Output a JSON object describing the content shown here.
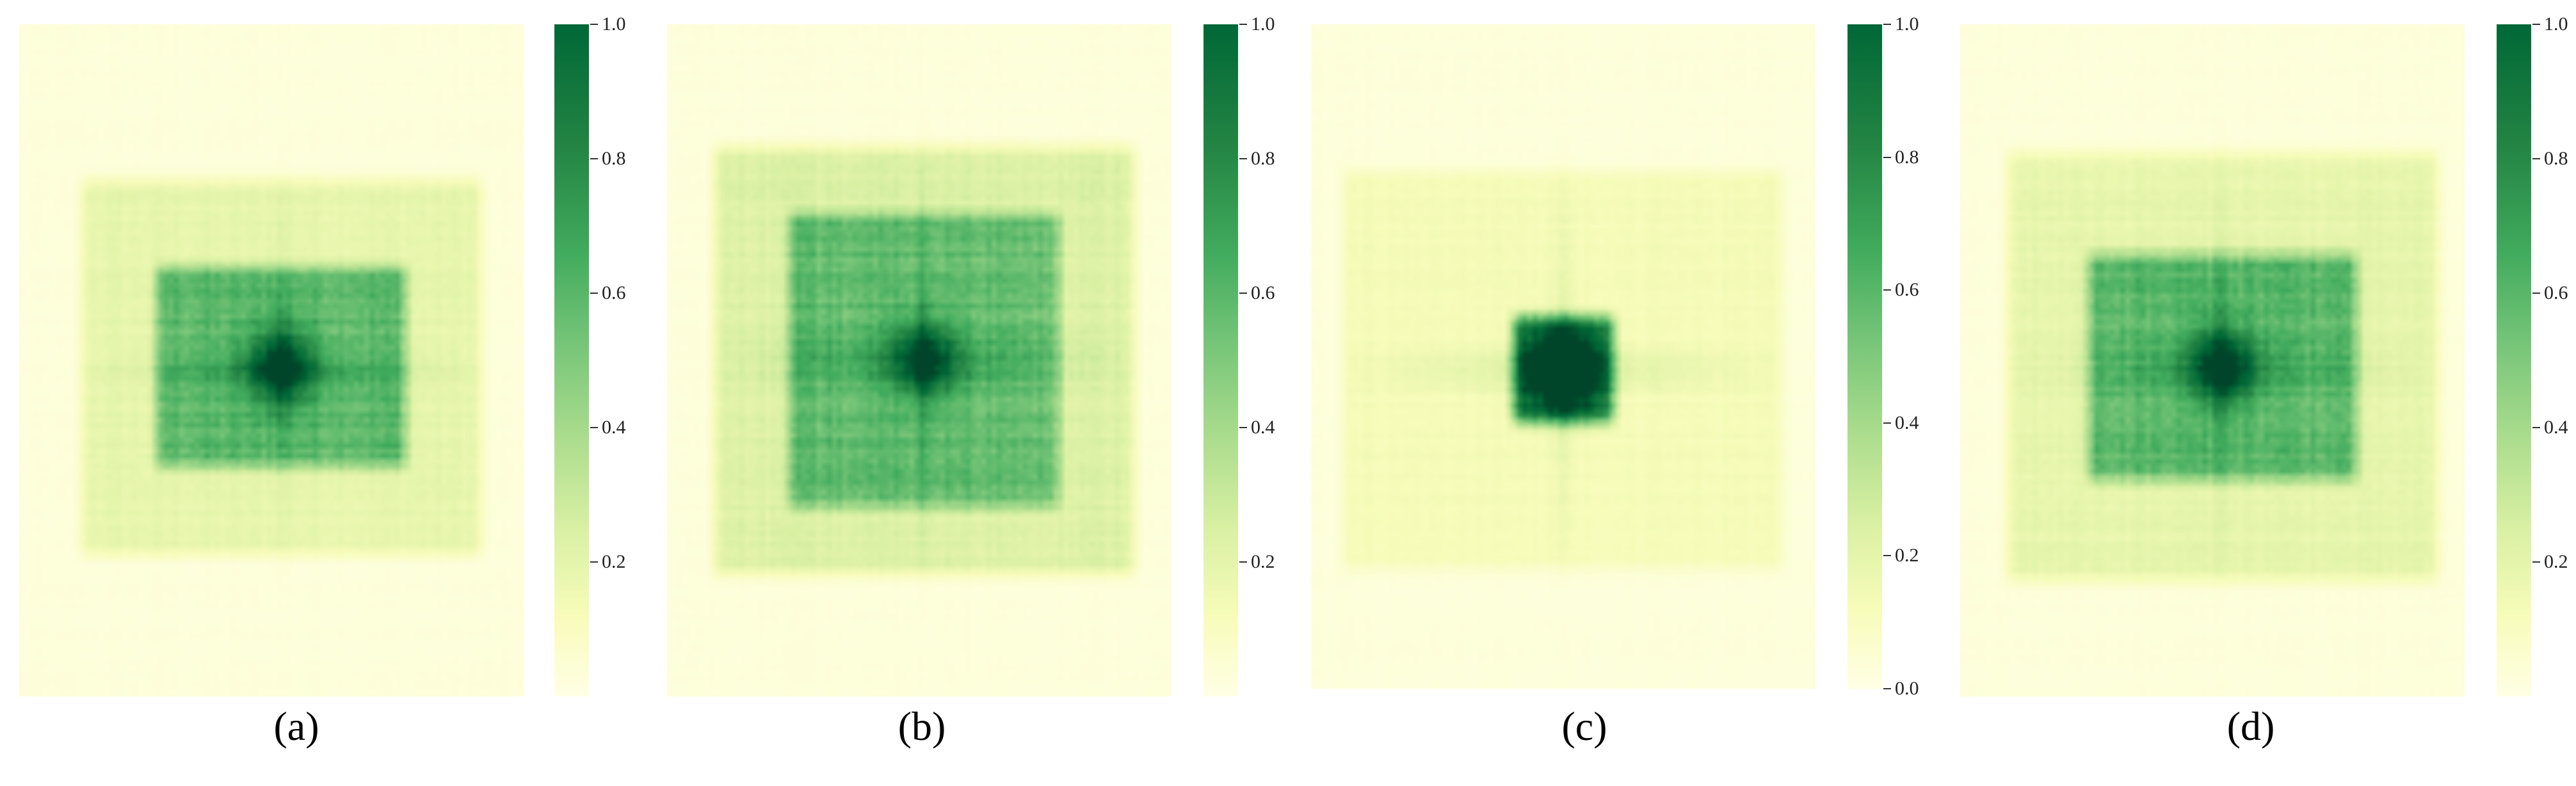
{
  "chart_data": [
    {
      "type": "heatmap",
      "caption": "(a)",
      "colormap": "YlGn",
      "colorbar": {
        "vmin": 0.0,
        "vmax": 1.0,
        "ticks": [
          "0.2",
          "0.4",
          "0.6",
          "0.8",
          "1.0"
        ]
      },
      "pattern": {
        "center": [
          0.52,
          0.51
        ],
        "peak": 0.85,
        "inner_box": {
          "half_w": 0.25,
          "half_h": 0.15,
          "level": 0.42
        },
        "outer_box": {
          "half_w": 0.4,
          "half_h": 0.28,
          "level": 0.16
        }
      }
    },
    {
      "type": "heatmap",
      "caption": "(b)",
      "colormap": "YlGn",
      "colorbar": {
        "vmin": 0.0,
        "vmax": 1.0,
        "ticks": [
          "0.2",
          "0.4",
          "0.6",
          "0.8",
          "1.0"
        ]
      },
      "pattern": {
        "center": [
          0.51,
          0.5
        ],
        "peak": 0.8,
        "inner_box": {
          "half_w": 0.27,
          "half_h": 0.22,
          "level": 0.38
        },
        "outer_box": {
          "half_w": 0.42,
          "half_h": 0.32,
          "level": 0.2
        }
      }
    },
    {
      "type": "heatmap",
      "caption": "(c)",
      "colormap": "YlGn",
      "colorbar": {
        "vmin": 0.0,
        "vmax": 1.0,
        "ticks": [
          "0.0",
          "0.2",
          "0.4",
          "0.6",
          "0.8",
          "1.0"
        ]
      },
      "pattern": {
        "center": [
          0.5,
          0.52
        ],
        "peak": 0.92,
        "inner_box": {
          "half_w": 0.1,
          "half_h": 0.08,
          "level": 0.7
        },
        "outer_box": {
          "half_w": 0.44,
          "half_h": 0.3,
          "level": 0.1
        }
      }
    },
    {
      "type": "heatmap",
      "caption": "(d)",
      "colormap": "YlGn",
      "colorbar": {
        "vmin": 0.0,
        "vmax": 1.0,
        "ticks": [
          "0.2",
          "0.4",
          "0.6",
          "0.8",
          "1.0"
        ]
      },
      "pattern": {
        "center": [
          0.52,
          0.51
        ],
        "peak": 0.85,
        "inner_box": {
          "half_w": 0.27,
          "half_h": 0.17,
          "level": 0.42
        },
        "outer_box": {
          "half_w": 0.43,
          "half_h": 0.32,
          "level": 0.16
        }
      }
    }
  ]
}
